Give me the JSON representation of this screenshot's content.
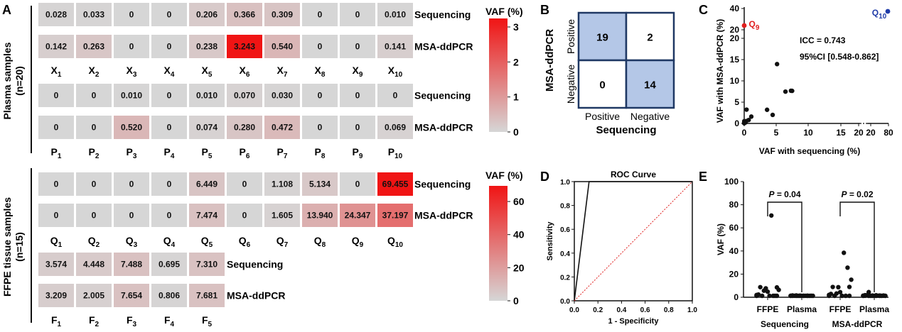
{
  "panel_letters": [
    "A",
    "B",
    "C",
    "D",
    "E"
  ],
  "section_labels": {
    "plasma": [
      "Plasma samples",
      "(n=20)"
    ],
    "ffpe": [
      "FFPE tissue samples",
      "(n=15)"
    ]
  },
  "colorbars": [
    {
      "title": "VAF (%)",
      "min": 0,
      "max": 3.243,
      "ticks": [
        0,
        1,
        2,
        3
      ]
    },
    {
      "title": "VAF (%)",
      "min": 0,
      "max": 69.455,
      "ticks": [
        0,
        20,
        40,
        60
      ]
    }
  ],
  "row_labels": {
    "seq": "Sequencing",
    "msa": "MSA-ddPCR"
  },
  "chart_data": [
    {
      "type": "heatmap",
      "name": "X",
      "rows": [
        "Sequencing",
        "MSA-ddPCR"
      ],
      "columns": [
        "X1",
        "X2",
        "X3",
        "X4",
        "X5",
        "X6",
        "X7",
        "X8",
        "X9",
        "X10"
      ],
      "col_letter": "X",
      "col_sub": [
        "1",
        "2",
        "3",
        "4",
        "5",
        "6",
        "7",
        "8",
        "9",
        "10"
      ],
      "values": [
        [
          "0.028",
          "0.033",
          "0",
          "0",
          "0.206",
          "0.366",
          "0.309",
          "0",
          "0",
          "0.010"
        ],
        [
          "0.142",
          "0.263",
          "0",
          "0",
          "0.238",
          "3.243",
          "0.540",
          "0",
          "0",
          "0.141"
        ]
      ],
      "scale_max": 3.243
    },
    {
      "type": "heatmap",
      "name": "P",
      "rows": [
        "Sequencing",
        "MSA-ddPCR"
      ],
      "columns": [
        "P1",
        "P2",
        "P3",
        "P4",
        "P5",
        "P6",
        "P7",
        "P8",
        "P9",
        "P10"
      ],
      "col_letter": "P",
      "col_sub": [
        "1",
        "2",
        "3",
        "4",
        "5",
        "6",
        "7",
        "8",
        "9",
        "10"
      ],
      "values": [
        [
          "0",
          "0",
          "0.010",
          "0",
          "0.010",
          "0.070",
          "0.030",
          "0",
          "0",
          "0"
        ],
        [
          "0",
          "0",
          "0.520",
          "0",
          "0.074",
          "0.280",
          "0.472",
          "0",
          "0",
          "0.069"
        ]
      ],
      "scale_max": 3.243
    },
    {
      "type": "heatmap",
      "name": "Q",
      "rows": [
        "Sequencing",
        "MSA-ddPCR"
      ],
      "columns": [
        "Q1",
        "Q2",
        "Q3",
        "Q4",
        "Q5",
        "Q6",
        "Q7",
        "Q8",
        "Q9",
        "Q10"
      ],
      "col_letter": "Q",
      "col_sub": [
        "1",
        "2",
        "3",
        "4",
        "5",
        "6",
        "7",
        "8",
        "9",
        "10"
      ],
      "values": [
        [
          "0",
          "0",
          "0",
          "0",
          "6.449",
          "0",
          "1.108",
          "5.134",
          "0",
          "69.455"
        ],
        [
          "0",
          "0",
          "0",
          "0",
          "7.474",
          "0",
          "1.605",
          "13.940",
          "24.347",
          "37.197"
        ]
      ],
      "scale_max": 69.455
    },
    {
      "type": "heatmap",
      "name": "F",
      "rows": [
        "Sequencing",
        "MSA-ddPCR"
      ],
      "columns": [
        "F1",
        "F2",
        "F3",
        "F4",
        "F5"
      ],
      "col_letter": "F",
      "col_sub": [
        "1",
        "2",
        "3",
        "4",
        "5"
      ],
      "values": [
        [
          "3.574",
          "4.448",
          "7.488",
          "0.695",
          "7.310"
        ],
        [
          "3.209",
          "2.005",
          "7.654",
          "0.806",
          "7.681"
        ]
      ],
      "scale_max": 69.455
    },
    {
      "type": "table",
      "name": "confusion",
      "title": "",
      "ylabel": "MSA-ddPCR",
      "xlabel": "Sequencing",
      "row_labels": [
        "Positive",
        "Negative"
      ],
      "col_labels": [
        "Positive",
        "Negative"
      ],
      "values": [
        [
          19,
          2
        ],
        [
          0,
          14
        ]
      ],
      "colors": [
        [
          "#b4c7e7",
          "#ffffff"
        ],
        [
          "#ffffff",
          "#b4c7e7"
        ]
      ]
    },
    {
      "type": "scatter",
      "name": "correlation",
      "xlabel": "VAF with sequencing (%)",
      "ylabel": "VAF with MSA-ddPCR (%)",
      "x_ticks_low": [
        "0",
        "5",
        "10",
        "15",
        "20"
      ],
      "x_ticks_high": [
        "20",
        "80"
      ],
      "y_ticks_low": [
        "0",
        "5",
        "10",
        "15",
        "20"
      ],
      "y_ticks_high": [
        "20",
        "40"
      ],
      "annotations": [
        "ICC = 0.743",
        "95%CI [0.548-0.862]"
      ],
      "points": [
        {
          "x": 0.028,
          "y": 0.142
        },
        {
          "x": 0.033,
          "y": 0.263
        },
        {
          "x": 0.206,
          "y": 0.238
        },
        {
          "x": 0.309,
          "y": 0.54
        },
        {
          "x": 0.01,
          "y": 0.141
        },
        {
          "x": 0.01,
          "y": 0.52
        },
        {
          "x": 0.01,
          "y": 0.074
        },
        {
          "x": 0.07,
          "y": 0.28
        },
        {
          "x": 0.03,
          "y": 0.472
        },
        {
          "x": 0,
          "y": 0.069
        },
        {
          "x": 0.366,
          "y": 3.243
        },
        {
          "x": 1.108,
          "y": 1.605
        },
        {
          "x": 5.134,
          "y": 13.94
        },
        {
          "x": 6.449,
          "y": 7.474
        },
        {
          "x": 3.574,
          "y": 3.209
        },
        {
          "x": 4.448,
          "y": 2.005
        },
        {
          "x": 7.488,
          "y": 7.654
        },
        {
          "x": 0.695,
          "y": 0.806
        },
        {
          "x": 7.31,
          "y": 7.681
        }
      ],
      "outliers": [
        {
          "label_letter": "Q",
          "label_sub": "9",
          "x": 0,
          "y": 24.347,
          "color": "#e0201f"
        },
        {
          "label_letter": "Q",
          "label_sub": "10",
          "x": 69.455,
          "y": 37.197,
          "color": "#1f3ba8"
        }
      ]
    },
    {
      "type": "line",
      "name": "roc",
      "title": "ROC Curve",
      "xlabel": "1 - Specificity",
      "ylabel": "Sensitivity",
      "xlim": [
        0,
        1
      ],
      "ylim": [
        0,
        1
      ],
      "ticks": [
        "0.0",
        "0.2",
        "0.4",
        "0.6",
        "0.8",
        "1.0"
      ],
      "series": [
        {
          "points": [
            [
              0,
              0
            ],
            [
              0.125,
              1.0
            ],
            [
              1.0,
              1.0
            ]
          ],
          "color": "#111111"
        },
        {
          "points": [
            [
              0,
              0
            ],
            [
              1,
              1
            ]
          ],
          "color": "#e0201f",
          "dashed": true
        }
      ]
    },
    {
      "type": "scatter",
      "name": "vaf_groups",
      "ylabel": "VAF (%)",
      "ylim": [
        0,
        100
      ],
      "y_ticks": [
        "0",
        "20",
        "40",
        "60",
        "80",
        "100"
      ],
      "categories": [
        "FFPE",
        "Plasma",
        "FFPE",
        "Plasma"
      ],
      "group_labels": [
        "Sequencing",
        "MSA-ddPCR"
      ],
      "p_values": [
        "P = 0.04",
        "P = 0.02"
      ],
      "groups": [
        [
          0,
          0,
          0,
          0,
          6.449,
          0,
          1.108,
          5.134,
          0,
          69.455,
          3.574,
          4.448,
          7.488,
          0.695,
          7.31
        ],
        [
          0.028,
          0.033,
          0,
          0,
          0.206,
          0.366,
          0.309,
          0,
          0,
          0.01,
          0,
          0,
          0.01,
          0,
          0.01,
          0.07,
          0.03,
          0,
          0,
          0
        ],
        [
          0,
          0,
          0,
          0,
          7.474,
          0,
          1.605,
          13.94,
          24.347,
          37.197,
          3.209,
          2.005,
          7.654,
          0.806,
          7.681
        ],
        [
          0.142,
          0.263,
          0,
          0,
          0.238,
          3.243,
          0.54,
          0,
          0,
          0.141,
          0,
          0,
          0.52,
          0,
          0.074,
          0.28,
          0.472,
          0,
          0,
          0.069
        ]
      ]
    }
  ]
}
